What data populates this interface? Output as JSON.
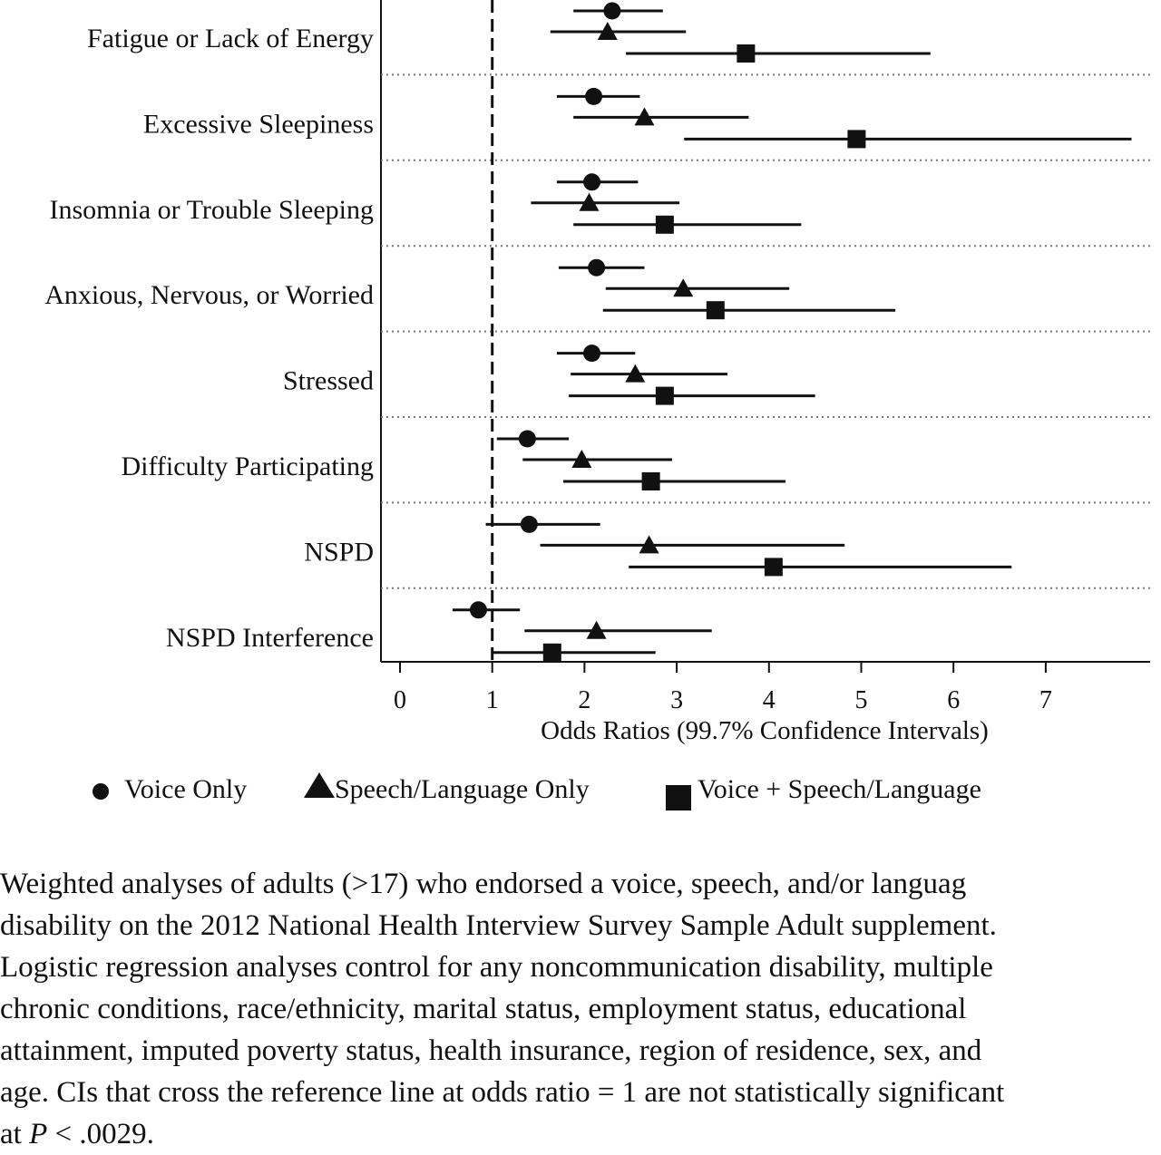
{
  "chart_data": {
    "type": "forest",
    "xlabel": "Odds Ratios (99.7% Confidence Intervals)",
    "xticks": [
      0,
      1,
      2,
      3,
      4,
      5,
      6,
      7
    ],
    "xlim": [
      -0.2,
      8.1
    ],
    "reference_line": 1,
    "categories": [
      "Fatigue or Lack of Energy",
      "Excessive Sleepiness",
      "Insomnia or Trouble Sleeping",
      "Anxious, Nervous, or Worried",
      "Stressed",
      "Difficulty Participating",
      "NSPD",
      "NSPD Interference"
    ],
    "series": [
      {
        "name": "Voice Only",
        "marker": "circle",
        "points": [
          {
            "or": 2.3,
            "low": 1.88,
            "high": 2.85
          },
          {
            "or": 2.1,
            "low": 1.7,
            "high": 2.6
          },
          {
            "or": 2.08,
            "low": 1.7,
            "high": 2.58
          },
          {
            "or": 2.13,
            "low": 1.72,
            "high": 2.65
          },
          {
            "or": 2.08,
            "low": 1.7,
            "high": 2.55
          },
          {
            "or": 1.38,
            "low": 1.05,
            "high": 1.83
          },
          {
            "or": 1.4,
            "low": 0.93,
            "high": 2.17
          },
          {
            "or": 0.85,
            "low": 0.57,
            "high": 1.3
          }
        ]
      },
      {
        "name": "Speech/Language Only",
        "marker": "triangle",
        "points": [
          {
            "or": 2.25,
            "low": 1.63,
            "high": 3.1
          },
          {
            "or": 2.65,
            "low": 1.88,
            "high": 3.78
          },
          {
            "or": 2.05,
            "low": 1.42,
            "high": 3.03
          },
          {
            "or": 3.07,
            "low": 2.23,
            "high": 4.22
          },
          {
            "or": 2.55,
            "low": 1.85,
            "high": 3.55
          },
          {
            "or": 1.97,
            "low": 1.33,
            "high": 2.95
          },
          {
            "or": 2.7,
            "low": 1.52,
            "high": 4.82
          },
          {
            "or": 2.13,
            "low": 1.35,
            "high": 3.38
          }
        ]
      },
      {
        "name": "Voice + Speech/Language",
        "marker": "square",
        "points": [
          {
            "or": 3.75,
            "low": 2.45,
            "high": 5.75
          },
          {
            "or": 4.95,
            "low": 3.08,
            "high": 7.93
          },
          {
            "or": 2.87,
            "low": 1.88,
            "high": 4.35
          },
          {
            "or": 3.42,
            "low": 2.2,
            "high": 5.37
          },
          {
            "or": 2.87,
            "low": 1.83,
            "high": 4.5
          },
          {
            "or": 2.72,
            "low": 1.77,
            "high": 4.18
          },
          {
            "or": 4.05,
            "low": 2.48,
            "high": 6.63
          },
          {
            "or": 1.65,
            "low": 1.0,
            "high": 2.77
          }
        ]
      }
    ],
    "caption_lines": [
      "Weighted analyses of adults (>17) who endorsed a voice, speech, and/or languag",
      "disability on the 2012 National Health Interview Survey Sample Adult supplement.",
      "Logistic regression analyses control for any noncommunication disability, multiple",
      "chronic conditions, race/ethnicity, marital status, employment status, educational",
      "attainment, imputed poverty status, health insurance, region of residence, sex, and",
      "age. CIs that cross the reference line at odds ratio = 1 are not statistically significant"
    ],
    "caption_last": {
      "prefix": "at ",
      "italic": "P",
      "suffix": " < .0029."
    }
  }
}
